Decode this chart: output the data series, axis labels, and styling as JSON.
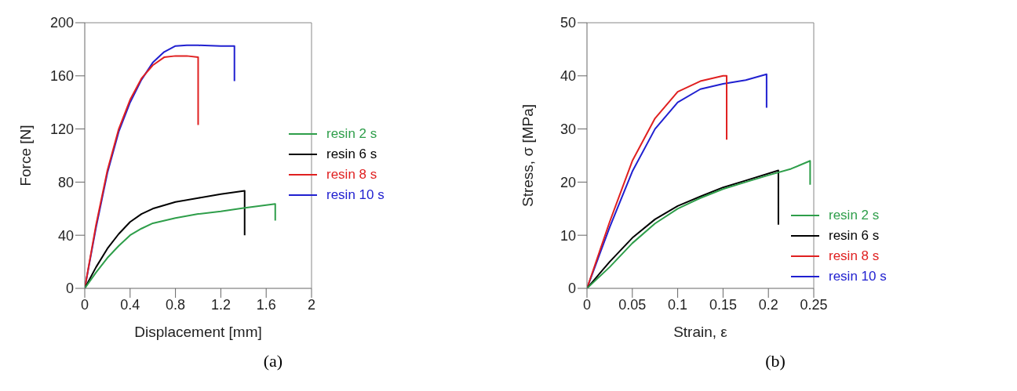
{
  "chart_data": [
    {
      "type": "line",
      "xlabel": "Displacement  [mm]",
      "ylabel": "Force  [N]",
      "xlim": [
        0,
        2
      ],
      "xticks": [
        0,
        0.4,
        0.8,
        1.2,
        1.6,
        2
      ],
      "ylim": [
        0,
        200
      ],
      "yticks": [
        0,
        40,
        80,
        120,
        160,
        200
      ],
      "grid": false,
      "legend": "right",
      "marker": "none",
      "line_style": "solid",
      "annotations": [
        "(a)"
      ],
      "series": [
        {
          "name": "resin 2 s",
          "color": "#2e9e4a",
          "x": [
            0,
            0.1,
            0.2,
            0.3,
            0.4,
            0.5,
            0.6,
            0.8,
            1.0,
            1.2,
            1.4,
            1.68,
            1.68
          ],
          "values": [
            0,
            12,
            23,
            32,
            40,
            45,
            49,
            53,
            56,
            58,
            60.5,
            63.5,
            51
          ]
        },
        {
          "name": "resin 6 s",
          "color": "#000000",
          "x": [
            0,
            0.1,
            0.2,
            0.3,
            0.4,
            0.5,
            0.6,
            0.8,
            1.0,
            1.2,
            1.41,
            1.41
          ],
          "values": [
            0,
            16,
            30,
            41,
            50,
            56,
            60,
            65,
            68,
            71,
            73.5,
            40
          ]
        },
        {
          "name": "resin 8 s",
          "color": "#e02020",
          "x": [
            0,
            0.1,
            0.2,
            0.3,
            0.4,
            0.5,
            0.6,
            0.7,
            0.8,
            0.9,
            1.0,
            1.0
          ],
          "values": [
            0,
            48,
            89,
            120,
            142,
            158,
            168,
            174,
            175,
            175,
            174,
            123
          ]
        },
        {
          "name": "resin 10 s",
          "color": "#2020d0",
          "x": [
            0,
            0.1,
            0.2,
            0.3,
            0.4,
            0.5,
            0.6,
            0.7,
            0.8,
            0.9,
            1.0,
            1.2,
            1.32,
            1.32
          ],
          "values": [
            0,
            46,
            87,
            118,
            140,
            157,
            170,
            178,
            182.5,
            183,
            183,
            182.5,
            182.5,
            156
          ]
        }
      ]
    },
    {
      "type": "line",
      "xlabel": "Strain, ε",
      "ylabel": "Stress, σ  [MPa]",
      "xlim": [
        0,
        0.25
      ],
      "xticks": [
        0,
        0.05,
        0.1,
        0.15,
        0.2,
        0.25
      ],
      "ylim": [
        0,
        50
      ],
      "yticks": [
        0,
        10,
        20,
        30,
        40,
        50
      ],
      "grid": false,
      "legend": "bottom right",
      "marker": "none",
      "line_style": "solid",
      "annotations": [
        "(b)"
      ],
      "series": [
        {
          "name": "resin 2 s",
          "color": "#2e9e4a",
          "x": [
            0,
            0.025,
            0.05,
            0.075,
            0.1,
            0.125,
            0.15,
            0.175,
            0.2,
            0.225,
            0.246,
            0.246
          ],
          "values": [
            0,
            4,
            8.5,
            12.2,
            15,
            17,
            18.7,
            20,
            21.3,
            22.5,
            24,
            19.5
          ]
        },
        {
          "name": "resin 6 s",
          "color": "#000000",
          "x": [
            0,
            0.025,
            0.05,
            0.075,
            0.1,
            0.125,
            0.15,
            0.175,
            0.211,
            0.211
          ],
          "values": [
            0,
            5,
            9.5,
            13,
            15.5,
            17.3,
            19,
            20.3,
            22.2,
            12
          ]
        },
        {
          "name": "resin 8 s",
          "color": "#e02020",
          "x": [
            0,
            0.025,
            0.05,
            0.075,
            0.1,
            0.125,
            0.15,
            0.154,
            0.154
          ],
          "values": [
            0,
            12.5,
            24,
            32,
            37,
            39,
            40,
            40,
            28
          ]
        },
        {
          "name": "resin 10 s",
          "color": "#2020d0",
          "x": [
            0,
            0.025,
            0.05,
            0.075,
            0.1,
            0.125,
            0.15,
            0.175,
            0.198,
            0.198
          ],
          "values": [
            0,
            11.5,
            22,
            30,
            35,
            37.5,
            38.5,
            39.2,
            40.3,
            34
          ]
        }
      ]
    }
  ]
}
